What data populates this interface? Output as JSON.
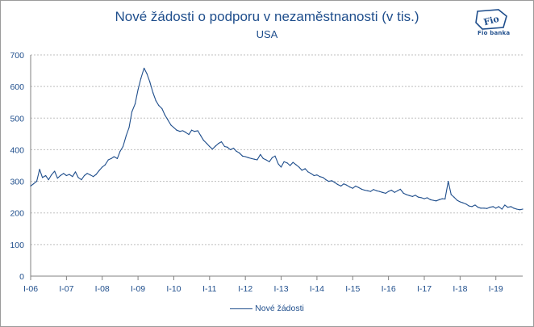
{
  "logo": {
    "text": "Fio banka",
    "mark": "Fio"
  },
  "chart_data": {
    "type": "line",
    "title": "Nové žádosti o podporu v nezaměstnanosti (v tis.)",
    "subtitle": "USA",
    "xlabel": "",
    "ylabel": "",
    "ylim": [
      0,
      700
    ],
    "yticks": [
      0,
      100,
      200,
      300,
      400,
      500,
      600,
      700
    ],
    "xlim": [
      2006.0,
      2019.75
    ],
    "x_tick_labels": [
      "I-06",
      "I-07",
      "I-08",
      "I-09",
      "I-10",
      "I-11",
      "I-12",
      "I-13",
      "I-14",
      "I-15",
      "I-16",
      "I-17",
      "I-18",
      "I-19"
    ],
    "x_tick_positions": [
      2006,
      2007,
      2008,
      2009,
      2010,
      2011,
      2012,
      2013,
      2014,
      2015,
      2016,
      2017,
      2018,
      2019
    ],
    "grid": "horizontal dotted",
    "legend_position": "bottom",
    "colors": {
      "series": "#1f4e8c",
      "text": "#1f4e8c",
      "grid": "#bfbfbf"
    },
    "series": [
      {
        "name": "Nové žádosti",
        "x": [
          2006.0,
          2006.08,
          2006.17,
          2006.25,
          2006.33,
          2006.42,
          2006.5,
          2006.58,
          2006.67,
          2006.75,
          2006.83,
          2006.92,
          2007.0,
          2007.08,
          2007.17,
          2007.25,
          2007.33,
          2007.42,
          2007.5,
          2007.58,
          2007.67,
          2007.75,
          2007.83,
          2007.92,
          2008.0,
          2008.08,
          2008.17,
          2008.25,
          2008.33,
          2008.42,
          2008.5,
          2008.58,
          2008.67,
          2008.75,
          2008.83,
          2008.92,
          2009.0,
          2009.08,
          2009.17,
          2009.25,
          2009.33,
          2009.42,
          2009.5,
          2009.58,
          2009.67,
          2009.75,
          2009.83,
          2009.92,
          2010.0,
          2010.08,
          2010.17,
          2010.25,
          2010.33,
          2010.42,
          2010.5,
          2010.58,
          2010.67,
          2010.75,
          2010.83,
          2010.92,
          2011.0,
          2011.08,
          2011.17,
          2011.25,
          2011.33,
          2011.42,
          2011.5,
          2011.58,
          2011.67,
          2011.75,
          2011.83,
          2011.92,
          2012.0,
          2012.08,
          2012.17,
          2012.25,
          2012.33,
          2012.42,
          2012.5,
          2012.58,
          2012.67,
          2012.75,
          2012.83,
          2012.92,
          2013.0,
          2013.08,
          2013.17,
          2013.25,
          2013.33,
          2013.42,
          2013.5,
          2013.58,
          2013.67,
          2013.75,
          2013.83,
          2013.92,
          2014.0,
          2014.08,
          2014.17,
          2014.25,
          2014.33,
          2014.42,
          2014.5,
          2014.58,
          2014.67,
          2014.75,
          2014.83,
          2014.92,
          2015.0,
          2015.08,
          2015.17,
          2015.25,
          2015.33,
          2015.42,
          2015.5,
          2015.58,
          2015.67,
          2015.75,
          2015.83,
          2015.92,
          2016.0,
          2016.08,
          2016.17,
          2016.25,
          2016.33,
          2016.42,
          2016.5,
          2016.58,
          2016.67,
          2016.75,
          2016.83,
          2016.92,
          2017.0,
          2017.08,
          2017.17,
          2017.25,
          2017.33,
          2017.42,
          2017.5,
          2017.58,
          2017.67,
          2017.75,
          2017.83,
          2017.92,
          2018.0,
          2018.08,
          2018.17,
          2018.25,
          2018.33,
          2018.42,
          2018.5,
          2018.58,
          2018.67,
          2018.75,
          2018.83,
          2018.92,
          2019.0,
          2019.08,
          2019.17,
          2019.25,
          2019.33,
          2019.42,
          2019.5,
          2019.58,
          2019.67,
          2019.75
        ],
        "values": [
          285,
          292,
          300,
          338,
          312,
          318,
          305,
          320,
          332,
          310,
          318,
          325,
          318,
          322,
          315,
          330,
          312,
          305,
          318,
          325,
          320,
          315,
          322,
          335,
          345,
          352,
          368,
          372,
          378,
          372,
          395,
          410,
          445,
          470,
          520,
          545,
          590,
          625,
          658,
          640,
          615,
          580,
          555,
          540,
          530,
          510,
          495,
          478,
          470,
          462,
          458,
          460,
          455,
          448,
          462,
          458,
          460,
          445,
          430,
          420,
          410,
          402,
          412,
          420,
          425,
          410,
          408,
          400,
          405,
          395,
          390,
          380,
          378,
          375,
          372,
          370,
          368,
          385,
          372,
          368,
          362,
          375,
          380,
          355,
          345,
          362,
          358,
          350,
          360,
          352,
          345,
          335,
          340,
          330,
          325,
          318,
          320,
          315,
          312,
          305,
          300,
          302,
          296,
          290,
          285,
          292,
          288,
          282,
          278,
          285,
          280,
          275,
          272,
          270,
          268,
          274,
          270,
          268,
          265,
          262,
          268,
          272,
          265,
          270,
          275,
          262,
          258,
          255,
          252,
          256,
          250,
          248,
          245,
          248,
          242,
          240,
          238,
          242,
          245,
          244,
          300,
          258,
          250,
          240,
          235,
          232,
          228,
          222,
          220,
          225,
          218,
          215,
          215,
          214,
          218,
          220,
          215,
          220,
          212,
          225,
          218,
          220,
          215,
          212,
          210,
          212
        ]
      }
    ],
    "annotations_peaks": []
  }
}
